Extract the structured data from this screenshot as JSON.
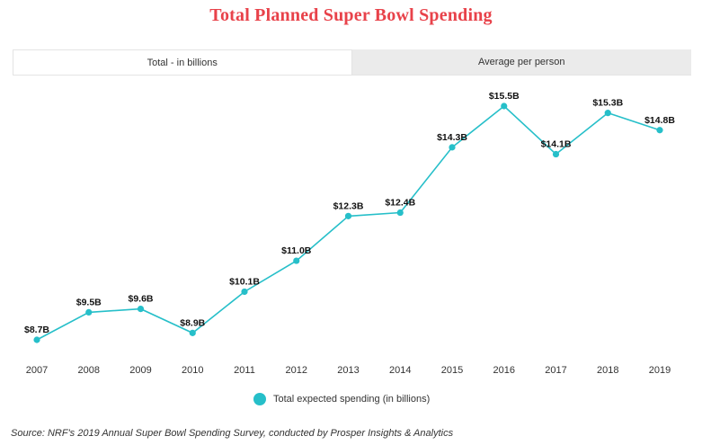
{
  "title": "Total Planned Super Bowl Spending",
  "tabs": [
    {
      "label": "Total - in billions",
      "active": true
    },
    {
      "label": "Average per person",
      "active": false
    }
  ],
  "legend": {
    "label": "Total expected spending (in billions)"
  },
  "source": "Source: NRF's 2019 Annual Super Bowl Spending Survey, conducted by Prosper Insights & Analytics",
  "colors": {
    "line": "#26bfc9",
    "title": "#e8424a"
  },
  "chart_data": {
    "type": "line",
    "title": "Total Planned Super Bowl Spending",
    "xlabel": "",
    "ylabel": "",
    "categories": [
      "2007",
      "2008",
      "2009",
      "2010",
      "2011",
      "2012",
      "2013",
      "2014",
      "2015",
      "2016",
      "2017",
      "2018",
      "2019"
    ],
    "series": [
      {
        "name": "Total expected spending (in billions)",
        "values": [
          8.7,
          9.5,
          9.6,
          8.9,
          10.1,
          11.0,
          12.3,
          12.4,
          14.3,
          15.5,
          14.1,
          15.3,
          14.8
        ],
        "labels": [
          "$8.7B",
          "$9.5B",
          "$9.6B",
          "$8.9B",
          "$10.1B",
          "$11.0B",
          "$12.3B",
          "$12.4B",
          "$14.3B",
          "$15.5B",
          "$14.1B",
          "$15.3B",
          "$14.8B"
        ]
      }
    ],
    "grid": false,
    "legend_position": "bottom"
  }
}
